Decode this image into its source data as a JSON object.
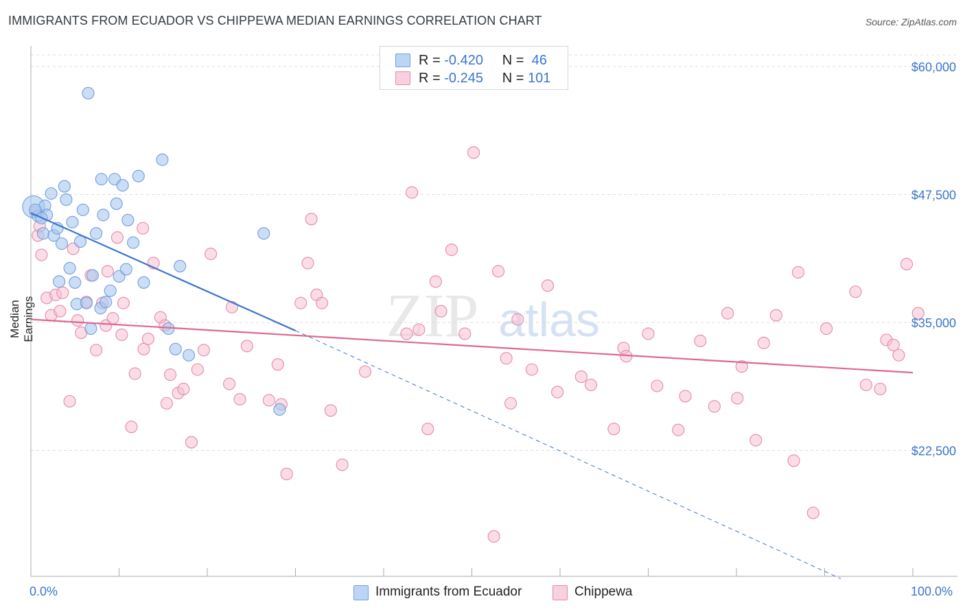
{
  "title": "IMMIGRANTS FROM ECUADOR VS CHIPPEWA MEDIAN EARNINGS CORRELATION CHART",
  "source": "Source: ZipAtlas.com",
  "watermark": {
    "zip": "ZIP",
    "atlas": "atlas"
  },
  "legend": {
    "rows": [
      {
        "r_label": "R =",
        "r_value": "-0.420",
        "n_label": "N =",
        "n_value": "46",
        "color": "#a9c8f0",
        "stroke": "#6f9fde"
      },
      {
        "r_label": "R =",
        "r_value": "-0.245",
        "n_label": "N =",
        "n_value": "101",
        "color": "#f6c1d2",
        "stroke": "#e58aa8"
      }
    ]
  },
  "bottom_legend": [
    {
      "label": "Immigrants from Ecuador",
      "color": "#bcd5f4",
      "stroke": "#6f9fde"
    },
    {
      "label": "Chippewa",
      "color": "#f9d0dd",
      "stroke": "#e58aa8"
    }
  ],
  "chart_data": {
    "type": "scatter",
    "title": "IMMIGRANTS FROM ECUADOR VS CHIPPEWA MEDIAN EARNINGS CORRELATION CHART",
    "xlabel": "",
    "ylabel": "Median Earnings",
    "x_tick_labels": [
      "0.0%",
      "100.0%"
    ],
    "y_tick_labels": [
      "$22,500",
      "$35,000",
      "$47,500",
      "$60,000"
    ],
    "y_ticks": [
      22500,
      35000,
      47500,
      60000
    ],
    "xlim": [
      0,
      100
    ],
    "ylim": [
      10000,
      61500
    ],
    "grid": true,
    "legend_position": "top-center",
    "series": [
      {
        "name": "Immigrants from Ecuador",
        "color": "#6f9fde",
        "fill": "#a9c8f0",
        "trend": {
          "x0": 0,
          "y0": 45700,
          "x1": 30,
          "y1": 34200,
          "dashed_to": [
            100,
            9500
          ]
        },
        "points": [
          [
            0.3,
            46300
          ],
          [
            0.8,
            45400
          ],
          [
            1.6,
            46400
          ],
          [
            1.4,
            43700
          ],
          [
            1.8,
            45500
          ],
          [
            2.3,
            47600
          ],
          [
            2.6,
            43500
          ],
          [
            3.0,
            44200
          ],
          [
            3.2,
            39000
          ],
          [
            3.5,
            42700
          ],
          [
            3.8,
            48300
          ],
          [
            4.0,
            47000
          ],
          [
            4.4,
            40300
          ],
          [
            4.7,
            44800
          ],
          [
            5.0,
            38900
          ],
          [
            5.2,
            36800
          ],
          [
            5.6,
            42900
          ],
          [
            5.9,
            46000
          ],
          [
            6.3,
            36900
          ],
          [
            6.8,
            34400
          ],
          [
            7.0,
            39600
          ],
          [
            7.4,
            43700
          ],
          [
            7.9,
            36400
          ],
          [
            8.0,
            49000
          ],
          [
            8.2,
            45500
          ],
          [
            8.5,
            37000
          ],
          [
            9.0,
            38100
          ],
          [
            9.5,
            49000
          ],
          [
            9.7,
            46600
          ],
          [
            10.0,
            39500
          ],
          [
            10.4,
            48400
          ],
          [
            10.8,
            40200
          ],
          [
            11.0,
            45000
          ],
          [
            11.6,
            42800
          ],
          [
            12.2,
            49300
          ],
          [
            12.8,
            38900
          ],
          [
            14.9,
            50900
          ],
          [
            15.6,
            34400
          ],
          [
            16.4,
            32400
          ],
          [
            16.9,
            40500
          ],
          [
            17.9,
            31800
          ],
          [
            26.4,
            43700
          ],
          [
            28.2,
            26500
          ],
          [
            6.5,
            57400
          ],
          [
            0.5,
            46000
          ],
          [
            1.2,
            45200
          ]
        ]
      },
      {
        "name": "Chippewa",
        "color": "#e58aa8",
        "fill": "#f6c1d2",
        "trend": {
          "x0": 0,
          "y0": 35300,
          "x1": 100,
          "y1": 30100
        },
        "points": [
          [
            0.8,
            43500
          ],
          [
            1.2,
            41600
          ],
          [
            1.8,
            37400
          ],
          [
            2.3,
            35700
          ],
          [
            2.8,
            37700
          ],
          [
            3.3,
            36100
          ],
          [
            3.6,
            37900
          ],
          [
            4.4,
            27300
          ],
          [
            4.8,
            42200
          ],
          [
            5.3,
            35200
          ],
          [
            5.7,
            34000
          ],
          [
            6.3,
            37000
          ],
          [
            6.8,
            39600
          ],
          [
            7.4,
            32300
          ],
          [
            8.1,
            36900
          ],
          [
            8.5,
            34700
          ],
          [
            8.7,
            40000
          ],
          [
            9.3,
            35400
          ],
          [
            9.8,
            43300
          ],
          [
            10.3,
            33800
          ],
          [
            10.5,
            36900
          ],
          [
            11.4,
            24800
          ],
          [
            11.8,
            30000
          ],
          [
            12.7,
            44200
          ],
          [
            12.8,
            32400
          ],
          [
            13.3,
            33400
          ],
          [
            13.9,
            40800
          ],
          [
            14.7,
            35500
          ],
          [
            15.2,
            34700
          ],
          [
            15.4,
            27100
          ],
          [
            15.8,
            29900
          ],
          [
            16.7,
            28100
          ],
          [
            17.3,
            28500
          ],
          [
            18.2,
            23300
          ],
          [
            18.9,
            30400
          ],
          [
            19.6,
            32300
          ],
          [
            20.4,
            41700
          ],
          [
            22.5,
            29000
          ],
          [
            22.8,
            36500
          ],
          [
            23.7,
            27500
          ],
          [
            24.5,
            32700
          ],
          [
            27.0,
            27400
          ],
          [
            28.0,
            30900
          ],
          [
            28.4,
            27000
          ],
          [
            29.0,
            20200
          ],
          [
            30.6,
            36900
          ],
          [
            31.4,
            40800
          ],
          [
            31.8,
            45100
          ],
          [
            32.4,
            37700
          ],
          [
            33.0,
            36900
          ],
          [
            34.0,
            26400
          ],
          [
            35.3,
            21100
          ],
          [
            37.9,
            30200
          ],
          [
            42.6,
            33900
          ],
          [
            43.2,
            47700
          ],
          [
            44.0,
            34300
          ],
          [
            45.0,
            24600
          ],
          [
            45.9,
            39000
          ],
          [
            46.5,
            36100
          ],
          [
            47.7,
            42100
          ],
          [
            49.2,
            33900
          ],
          [
            50.2,
            51600
          ],
          [
            53.0,
            40000
          ],
          [
            53.9,
            31500
          ],
          [
            54.4,
            27100
          ],
          [
            55.2,
            35300
          ],
          [
            56.8,
            30400
          ],
          [
            58.6,
            38600
          ],
          [
            59.7,
            28200
          ],
          [
            62.4,
            29700
          ],
          [
            63.5,
            28900
          ],
          [
            66.1,
            24600
          ],
          [
            67.2,
            32500
          ],
          [
            67.5,
            31700
          ],
          [
            70.0,
            33900
          ],
          [
            71.0,
            28800
          ],
          [
            73.4,
            24500
          ],
          [
            74.2,
            27800
          ],
          [
            75.9,
            33200
          ],
          [
            77.5,
            26800
          ],
          [
            79.0,
            35900
          ],
          [
            80.1,
            27600
          ],
          [
            80.6,
            30700
          ],
          [
            82.2,
            23500
          ],
          [
            83.1,
            33000
          ],
          [
            84.5,
            35700
          ],
          [
            86.5,
            21500
          ],
          [
            87.0,
            39900
          ],
          [
            88.7,
            16400
          ],
          [
            90.2,
            34400
          ],
          [
            93.5,
            38000
          ],
          [
            94.7,
            28900
          ],
          [
            96.3,
            28500
          ],
          [
            97.0,
            33300
          ],
          [
            97.8,
            32800
          ],
          [
            98.4,
            31800
          ],
          [
            99.3,
            40700
          ],
          [
            100.6,
            35900
          ],
          [
            52.5,
            14100
          ],
          [
            1.0,
            44400
          ],
          [
            0.5,
            45800
          ]
        ]
      }
    ]
  }
}
